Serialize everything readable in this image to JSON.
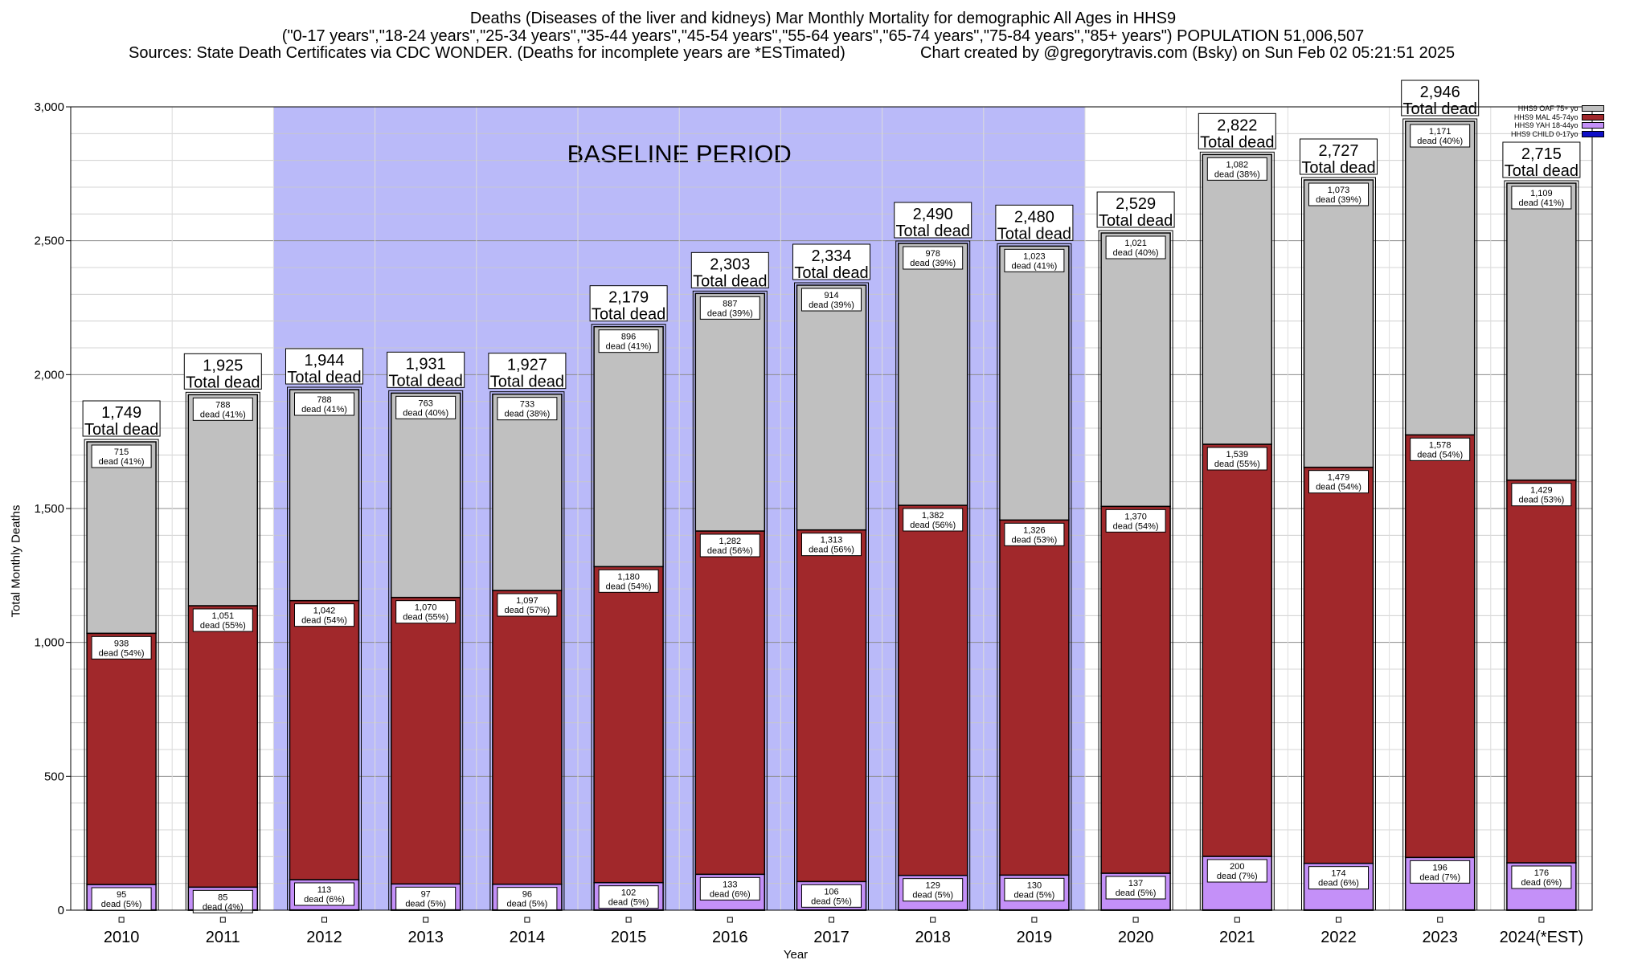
{
  "header": {
    "line1": "Deaths (Diseases of the liver and kidneys) Mar Monthly Mortality for demographic All Ages in HHS9",
    "line2": "(\"0-17 years\",\"18-24 years\",\"25-34 years\",\"35-44 years\",\"45-54 years\",\"55-64 years\",\"65-74 years\",\"75-84 years\",\"85+ years\") POPULATION 51,006,507",
    "line3": "Sources: State Death Certificates via CDC WONDER. (Deaths for incomplete years are *ESTimated)",
    "line4": "Chart created by @gregorytravis.com (Bsky) on Sun Feb 02 05:21:51 2025"
  },
  "chart_data": {
    "type": "bar",
    "stacked": true,
    "title": "Deaths (Diseases of the liver and kidneys) Mar Monthly Mortality for demographic All Ages in HHS9",
    "xlabel": "Year",
    "ylabel": "Total Monthly Deaths",
    "ylim": [
      0,
      3000
    ],
    "yticks": [
      0,
      500,
      1000,
      1500,
      2000,
      2500,
      3000
    ],
    "ytick_labels": [
      "0",
      "500",
      "1,000",
      "1,500",
      "2,000",
      "2,500",
      "3,000"
    ],
    "grid": true,
    "legend_position": "top-right",
    "baseline_label": "BASELINE PERIOD",
    "baseline_range": [
      "2012",
      "2019"
    ],
    "baseline_color": "#babaf9",
    "categories": [
      "2010",
      "2011",
      "2012",
      "2013",
      "2014",
      "2015",
      "2016",
      "2017",
      "2018",
      "2019",
      "2020",
      "2021",
      "2022",
      "2023",
      "2024(*EST)"
    ],
    "totals": [
      1749,
      1925,
      1944,
      1931,
      1927,
      2179,
      2303,
      2334,
      2490,
      2480,
      2529,
      2822,
      2727,
      2946,
      2715
    ],
    "totals_labels": [
      "1,749",
      "1,925",
      "1,944",
      "1,931",
      "1,927",
      "2,179",
      "2,303",
      "2,334",
      "2,490",
      "2,480",
      "2,529",
      "2,822",
      "2,727",
      "2,946",
      "2,715"
    ],
    "total_suffix": "Total dead",
    "series": [
      {
        "name": "HHS9 CHILD 0-17yo",
        "color": "#1010c8",
        "values": [
          1,
          1,
          1,
          1,
          1,
          1,
          1,
          1,
          1,
          1,
          1,
          1,
          1,
          1,
          1
        ]
      },
      {
        "name": "HHS9 YAH 18-44yo",
        "color": "#c490f8",
        "values": [
          95,
          85,
          113,
          97,
          96,
          102,
          133,
          106,
          129,
          130,
          137,
          200,
          174,
          196,
          176
        ],
        "labels": [
          [
            "95",
            "dead (5%)"
          ],
          [
            "85",
            "dead (4%)"
          ],
          [
            "113",
            "dead (6%)"
          ],
          [
            "97",
            "dead (5%)"
          ],
          [
            "96",
            "dead (5%)"
          ],
          [
            "102",
            "dead (5%)"
          ],
          [
            "133",
            "dead (6%)"
          ],
          [
            "106",
            "dead (5%)"
          ],
          [
            "129",
            "dead (5%)"
          ],
          [
            "130",
            "dead (5%)"
          ],
          [
            "137",
            "dead (5%)"
          ],
          [
            "200",
            "dead (7%)"
          ],
          [
            "174",
            "dead (6%)"
          ],
          [
            "196",
            "dead (7%)"
          ],
          [
            "176",
            "dead (6%)"
          ]
        ]
      },
      {
        "name": "HHS9 MAL 45-74yo",
        "color": "#a1282b",
        "values": [
          938,
          1051,
          1042,
          1070,
          1097,
          1180,
          1282,
          1313,
          1382,
          1326,
          1370,
          1539,
          1479,
          1578,
          1429
        ],
        "labels": [
          [
            "938",
            "dead (54%)"
          ],
          [
            "1,051",
            "dead (55%)"
          ],
          [
            "1,042",
            "dead (54%)"
          ],
          [
            "1,070",
            "dead (55%)"
          ],
          [
            "1,097",
            "dead (57%)"
          ],
          [
            "1,180",
            "dead (54%)"
          ],
          [
            "1,282",
            "dead (56%)"
          ],
          [
            "1,313",
            "dead (56%)"
          ],
          [
            "1,382",
            "dead (56%)"
          ],
          [
            "1,326",
            "dead (53%)"
          ],
          [
            "1,370",
            "dead (54%)"
          ],
          [
            "1,539",
            "dead (55%)"
          ],
          [
            "1,479",
            "dead (54%)"
          ],
          [
            "1,578",
            "dead (54%)"
          ],
          [
            "1,429",
            "dead (53%)"
          ]
        ]
      },
      {
        "name": "HHS9 OAF 75+ yo",
        "color": "#c0c0c0",
        "values": [
          715,
          788,
          788,
          763,
          733,
          896,
          887,
          914,
          978,
          1023,
          1021,
          1082,
          1073,
          1171,
          1109
        ],
        "labels": [
          [
            "715",
            "dead (41%)"
          ],
          [
            "788",
            "dead (41%)"
          ],
          [
            "788",
            "dead (41%)"
          ],
          [
            "763",
            "dead (40%)"
          ],
          [
            "733",
            "dead (38%)"
          ],
          [
            "896",
            "dead (41%)"
          ],
          [
            "887",
            "dead (39%)"
          ],
          [
            "914",
            "dead (39%)"
          ],
          [
            "978",
            "dead (39%)"
          ],
          [
            "1,023",
            "dead (41%)"
          ],
          [
            "1,021",
            "dead (40%)"
          ],
          [
            "1,082",
            "dead (38%)"
          ],
          [
            "1,073",
            "dead (39%)"
          ],
          [
            "1,171",
            "dead (40%)"
          ],
          [
            "1,109",
            "dead (41%)"
          ]
        ]
      }
    ]
  }
}
